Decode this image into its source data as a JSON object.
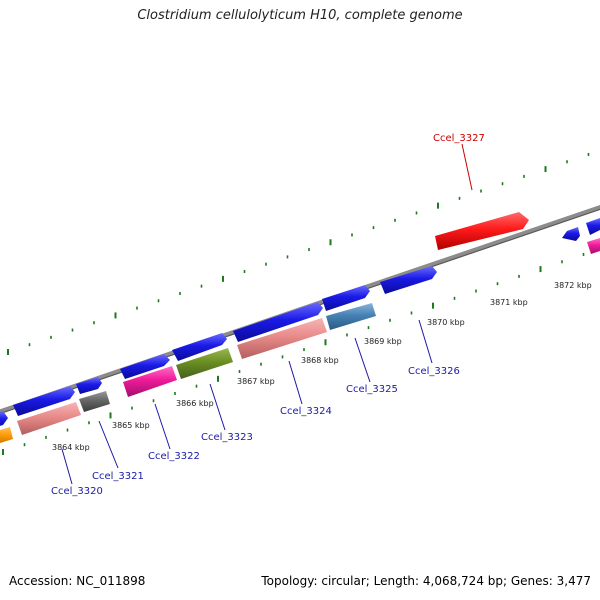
{
  "title": "Clostridium cellulolyticum H10, complete genome",
  "footer": {
    "accession": "Accession: NC_011898",
    "summary": "Topology: circular; Length: 4,068,724 bp; Genes: 3,477"
  },
  "colors": {
    "backbone": "#8c8c8c",
    "ticks": "#1f7a1f",
    "cds_blue": "#1a1ae6",
    "highlight": "#ff1a1a",
    "label_blue": "#1a1aa6",
    "label_red": "#cc0000"
  },
  "map_data": {
    "axis_unit": "kbp",
    "tick_labels": [
      {
        "text": "3864 kbp",
        "kbp": 3864
      },
      {
        "text": "3865 kbp",
        "kbp": 3865
      },
      {
        "text": "3866 kbp",
        "kbp": 3866
      },
      {
        "text": "3867 kbp",
        "kbp": 3867
      },
      {
        "text": "3868 kbp",
        "kbp": 3868
      },
      {
        "text": "3869 kbp",
        "kbp": 3869
      },
      {
        "text": "3870 kbp",
        "kbp": 3870
      },
      {
        "text": "3871 kbp",
        "kbp": 3871
      },
      {
        "text": "3872 kbp",
        "kbp": 3872
      }
    ],
    "gene_labels": [
      {
        "text": "Ccel_3320",
        "highlight": false
      },
      {
        "text": "Ccel_3321",
        "highlight": false
      },
      {
        "text": "Ccel_3322",
        "highlight": false
      },
      {
        "text": "Ccel_3323",
        "highlight": false
      },
      {
        "text": "Ccel_3324",
        "highlight": false
      },
      {
        "text": "Ccel_3325",
        "highlight": false
      },
      {
        "text": "Ccel_3326",
        "highlight": false
      },
      {
        "text": "Ccel_3327",
        "highlight": true
      }
    ]
  }
}
